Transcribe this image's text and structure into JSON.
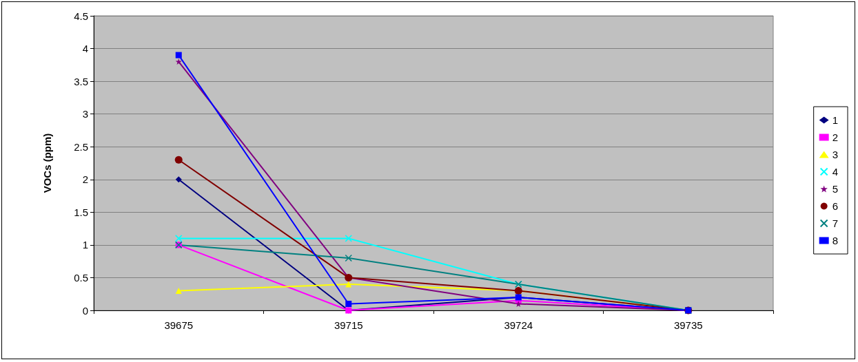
{
  "chart_data": {
    "type": "line",
    "ylabel": "VOCs (ppm)",
    "categories": [
      "39675",
      "39715",
      "39724",
      "39735"
    ],
    "ylim": [
      0,
      4.5
    ],
    "yticks": [
      0,
      0.5,
      1,
      1.5,
      2,
      2.5,
      3,
      3.5,
      4,
      4.5
    ],
    "grid": "y",
    "legend": "right",
    "series": [
      {
        "name": "1",
        "color": "#000080",
        "marker": "diamond",
        "values": [
          2,
          0,
          0.2,
          0
        ]
      },
      {
        "name": "2",
        "color": "#ff00ff",
        "marker": "square",
        "values": [
          1,
          0,
          0.15,
          0
        ]
      },
      {
        "name": "3",
        "color": "#ffff00",
        "marker": "triangle",
        "values": [
          0.3,
          0.4,
          0.3,
          0
        ]
      },
      {
        "name": "4",
        "color": "#00ffff",
        "marker": "cross",
        "values": [
          1.1,
          1.1,
          0.4,
          0
        ]
      },
      {
        "name": "5",
        "color": "#800080",
        "marker": "star",
        "values": [
          3.8,
          0.5,
          0.1,
          0
        ]
      },
      {
        "name": "6",
        "color": "#800000",
        "marker": "circle",
        "values": [
          2.3,
          0.5,
          0.3,
          0
        ]
      },
      {
        "name": "7",
        "color": "#008080",
        "marker": "cross",
        "values": [
          1,
          0.8,
          0.4,
          0
        ]
      },
      {
        "name": "8",
        "color": "#0000ff",
        "marker": "square",
        "values": [
          3.9,
          0.1,
          0.2,
          0
        ]
      }
    ]
  }
}
